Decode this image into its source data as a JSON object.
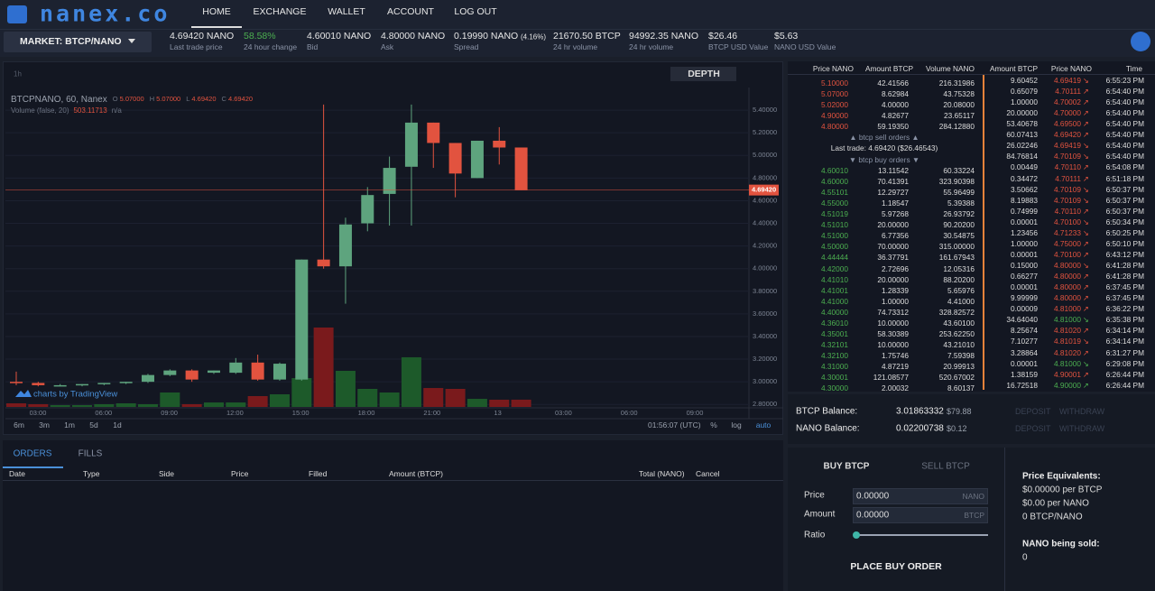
{
  "header": {
    "logo": "nanex.co",
    "nav": [
      "HOME",
      "EXCHANGE",
      "WALLET",
      "ACCOUNT",
      "LOG OUT"
    ]
  },
  "market": {
    "selector": "MARKET: BTCP/NANO",
    "stats": [
      {
        "value": "4.69420 NANO",
        "label": "Last trade price"
      },
      {
        "value": "58.58%",
        "label": "24 hour change",
        "color": "#4caf50"
      },
      {
        "value": "4.60010 NANO",
        "label": "Bid"
      },
      {
        "value": "4.80000 NANO",
        "label": "Ask"
      },
      {
        "value": "0.19990 NANO",
        "note": "(4.16%)",
        "label": "Spread"
      },
      {
        "value": "21670.50 BTCP",
        "label": "24 hr volume"
      },
      {
        "value": "94992.35 NANO",
        "label": "24 hr volume"
      },
      {
        "value": "$26.46",
        "label": "BTCP USD Value"
      },
      {
        "value": "$5.63",
        "label": "NANO USD Value"
      }
    ]
  },
  "chart": {
    "interval": "1h",
    "depth_button": "DEPTH",
    "title": "BTCPNANO, 60, Nanex",
    "ohlc_legend": [
      "O",
      "5.07000",
      "H",
      "5.07000",
      "L",
      "4.69420",
      "C",
      "4.69420"
    ],
    "volume_legend": [
      "Volume (false, 20)",
      "503.11713",
      "n/a"
    ],
    "watermark": "charts by TradingView",
    "ylim": [
      2.77,
      5.6
    ],
    "yticks": [
      {
        "value": 2.8,
        "label": "2.80000"
      },
      {
        "value": 3.0,
        "label": "3.00000"
      },
      {
        "value": 3.2,
        "label": "3.20000"
      },
      {
        "value": 3.4,
        "label": "3.40000"
      },
      {
        "value": 3.6,
        "label": "3.60000"
      },
      {
        "value": 3.8,
        "label": "3.80000"
      },
      {
        "value": 4.0,
        "label": "4.00000"
      },
      {
        "value": 4.2,
        "label": "4.20000"
      },
      {
        "value": 4.4,
        "label": "4.40000"
      },
      {
        "value": 4.6,
        "label": "4.60000"
      },
      {
        "value": 4.8,
        "label": "4.80000"
      },
      {
        "value": 5.0,
        "label": "5.00000"
      },
      {
        "value": 5.2,
        "label": "5.20000"
      },
      {
        "value": 5.4,
        "label": "5.40000"
      }
    ],
    "last_price": {
      "value": 4.6942,
      "label": "4.69420"
    },
    "time_labels": [
      "03:00",
      "06:00",
      "09:00",
      "12:00",
      "15:00",
      "18:00",
      "21:00",
      "13",
      "03:00",
      "06:00",
      "09:00"
    ],
    "open": [
      3.0,
      2.99,
      2.97,
      2.97,
      2.98,
      2.99,
      3.0,
      3.06,
      3.1,
      3.08,
      3.08,
      3.17,
      3.02,
      3.02,
      4.08,
      4.02,
      4.4,
      4.66,
      4.9,
      5.29,
      5.11,
      4.8,
      5.13,
      5.07
    ],
    "high": [
      3.09,
      3.0,
      2.98,
      2.98,
      2.99,
      3.0,
      3.07,
      3.11,
      3.11,
      3.1,
      3.21,
      3.24,
      3.17,
      4.08,
      5.45,
      4.45,
      4.72,
      4.99,
      5.45,
      5.29,
      5.11,
      5.13,
      5.25,
      5.07
    ],
    "low": [
      2.97,
      2.96,
      2.96,
      2.96,
      2.97,
      2.98,
      2.99,
      3.05,
      3.0,
      3.07,
      3.07,
      3.01,
      3.01,
      3.01,
      4.0,
      3.69,
      4.33,
      4.38,
      4.38,
      4.89,
      4.63,
      4.8,
      4.92,
      4.6942
    ],
    "close": [
      2.99,
      2.97,
      2.97,
      2.98,
      2.99,
      3.0,
      3.06,
      3.1,
      3.02,
      3.1,
      3.17,
      3.02,
      3.16,
      4.08,
      4.02,
      4.39,
      4.65,
      4.89,
      5.29,
      5.11,
      4.84,
      5.13,
      5.07,
      4.6942
    ],
    "volume": [
      250,
      190,
      125,
      125,
      190,
      250,
      190,
      1000,
      190,
      310,
      310,
      750,
      875,
      2000,
      5500,
      2500,
      1250,
      1000,
      3440,
      1310,
      1250,
      560,
      500,
      503.11713
    ],
    "volume_lim": [
      0,
      6000
    ],
    "up_color": "#5ea47e",
    "down_color": "#e2533f",
    "volume_up_color": "#1d5a2a",
    "volume_down_color": "#7a1a1c",
    "ranges": [
      "6m",
      "3m",
      "1m",
      "5d",
      "1d"
    ],
    "clock": "01:56:07 (UTC)",
    "options": [
      "%",
      "log",
      "auto"
    ]
  },
  "orders": {
    "tabs": [
      "ORDERS",
      "FILLS"
    ],
    "columns": [
      "Date",
      "Type",
      "Side",
      "Price",
      "Filled",
      "Amount (BTCP)",
      "Total (NANO)",
      "Cancel"
    ]
  },
  "order_book": {
    "columns": [
      "Price NANO",
      "Amount BTCP",
      "Volume NANO"
    ],
    "sell_color": "#e2533f",
    "buy_color": "#4caf50",
    "sell": [
      [
        "5.10000",
        "42.41566",
        "216.31986"
      ],
      [
        "5.07000",
        "8.62984",
        "43.75328"
      ],
      [
        "5.02000",
        "4.00000",
        "20.08000"
      ],
      [
        "4.90000",
        "4.82677",
        "23.65117"
      ],
      [
        "4.80000",
        "59.19350",
        "284.12880"
      ]
    ],
    "sell_label": "▲ btcp sell orders ▲",
    "last_trade": "Last trade: 4.69420 ($26.46543)",
    "buy_label": "▼ btcp buy orders ▼",
    "buy": [
      [
        "4.60010",
        "13.11542",
        "60.33224"
      ],
      [
        "4.60000",
        "70.41391",
        "323.90398"
      ],
      [
        "4.55101",
        "12.29727",
        "55.96499"
      ],
      [
        "4.55000",
        "1.18547",
        "5.39388"
      ],
      [
        "4.51019",
        "5.97268",
        "26.93792"
      ],
      [
        "4.51010",
        "20.00000",
        "90.20200"
      ],
      [
        "4.51000",
        "6.77356",
        "30.54875"
      ],
      [
        "4.50000",
        "70.00000",
        "315.00000"
      ],
      [
        "4.44444",
        "36.37791",
        "161.67943"
      ],
      [
        "4.42000",
        "2.72696",
        "12.05316"
      ],
      [
        "4.41010",
        "20.00000",
        "88.20200"
      ],
      [
        "4.41001",
        "1.28339",
        "5.65976"
      ],
      [
        "4.41000",
        "1.00000",
        "4.41000"
      ],
      [
        "4.40000",
        "74.73312",
        "328.82572"
      ],
      [
        "4.36010",
        "10.00000",
        "43.60100"
      ],
      [
        "4.35001",
        "58.30389",
        "253.62250"
      ],
      [
        "4.32101",
        "10.00000",
        "43.21010"
      ],
      [
        "4.32100",
        "1.75746",
        "7.59398"
      ],
      [
        "4.31000",
        "4.87219",
        "20.99913"
      ],
      [
        "4.30001",
        "121.08577",
        "520.67002"
      ],
      [
        "4.30000",
        "2.00032",
        "8.60137"
      ]
    ]
  },
  "trades": {
    "columns": [
      "Amount BTCP",
      "Price NANO",
      "Time"
    ],
    "rows": [
      [
        "9.60452",
        "4.69419",
        "↘",
        "6:55:23 PM",
        "#e2533f"
      ],
      [
        "0.65079",
        "4.70111",
        "↗",
        "6:54:40 PM",
        "#e2533f"
      ],
      [
        "1.00000",
        "4.70002",
        "↗",
        "6:54:40 PM",
        "#e2533f"
      ],
      [
        "20.00000",
        "4.70000",
        "↗",
        "6:54:40 PM",
        "#e2533f"
      ],
      [
        "53.40678",
        "4.69500",
        "↗",
        "6:54:40 PM",
        "#e2533f"
      ],
      [
        "60.07413",
        "4.69420",
        "↗",
        "6:54:40 PM",
        "#e2533f"
      ],
      [
        "26.02246",
        "4.69419",
        "↘",
        "6:54:40 PM",
        "#e2533f"
      ],
      [
        "84.76814",
        "4.70109",
        "↘",
        "6:54:40 PM",
        "#e2533f"
      ],
      [
        "0.00449",
        "4.70110",
        "↗",
        "6:54:08 PM",
        "#e2533f"
      ],
      [
        "0.34472",
        "4.70111",
        "↗",
        "6:51:18 PM",
        "#e2533f"
      ],
      [
        "3.50662",
        "4.70109",
        "↘",
        "6:50:37 PM",
        "#e2533f"
      ],
      [
        "8.19883",
        "4.70109",
        "↘",
        "6:50:37 PM",
        "#e2533f"
      ],
      [
        "0.74999",
        "4.70110",
        "↗",
        "6:50:37 PM",
        "#e2533f"
      ],
      [
        "0.00001",
        "4.70100",
        "↘",
        "6:50:34 PM",
        "#e2533f"
      ],
      [
        "1.23456",
        "4.71233",
        "↘",
        "6:50:25 PM",
        "#e2533f"
      ],
      [
        "1.00000",
        "4.75000",
        "↗",
        "6:50:10 PM",
        "#e2533f"
      ],
      [
        "0.00001",
        "4.70100",
        "↗",
        "6:43:12 PM",
        "#e2533f"
      ],
      [
        "0.15000",
        "4.80000",
        "↘",
        "6:41:28 PM",
        "#e2533f"
      ],
      [
        "0.66277",
        "4.80000",
        "↗",
        "6:41:28 PM",
        "#e2533f"
      ],
      [
        "0.00001",
        "4.80000",
        "↗",
        "6:37:45 PM",
        "#e2533f"
      ],
      [
        "9.99999",
        "4.80000",
        "↗",
        "6:37:45 PM",
        "#e2533f"
      ],
      [
        "0.00009",
        "4.81000",
        "↗",
        "6:36:22 PM",
        "#e2533f"
      ],
      [
        "34.64040",
        "4.81000",
        "↘",
        "6:35:38 PM",
        "#4caf50"
      ],
      [
        "8.25674",
        "4.81020",
        "↗",
        "6:34:14 PM",
        "#e2533f"
      ],
      [
        "7.10277",
        "4.81019",
        "↘",
        "6:34:14 PM",
        "#e2533f"
      ],
      [
        "3.28864",
        "4.81020",
        "↗",
        "6:31:27 PM",
        "#e2533f"
      ],
      [
        "0.00001",
        "4.81000",
        "↘",
        "6:29:08 PM",
        "#4caf50"
      ],
      [
        "1.38159",
        "4.90001",
        "↗",
        "6:26:44 PM",
        "#e2533f"
      ],
      [
        "16.72518",
        "4.90000",
        "↗",
        "6:26:44 PM",
        "#4caf50"
      ]
    ]
  },
  "balances": {
    "rows": [
      {
        "label": "BTCP Balance:",
        "amount": "3.01863332",
        "usd": "$79.88"
      },
      {
        "label": "NANO Balance:",
        "amount": "0.02200738",
        "usd": "$0.12"
      }
    ],
    "actions": [
      "DEPOSIT",
      "WITHDRAW"
    ]
  },
  "trade_form": {
    "tabs": [
      "BUY BTCP",
      "SELL BTCP"
    ],
    "fields": [
      {
        "label": "Price",
        "value": "0.00000",
        "unit": "NANO"
      },
      {
        "label": "Amount",
        "value": "0.00000",
        "unit": "BTCP"
      }
    ],
    "ratio": "Ratio",
    "button": "PLACE BUY ORDER",
    "equivalents_title": "Price Equivalents:",
    "equivalents": [
      "$0.00000 per BTCP",
      "$0.00 per NANO",
      "0 BTCP/NANO"
    ],
    "sold_title": "NANO being sold:",
    "sold": "0"
  }
}
